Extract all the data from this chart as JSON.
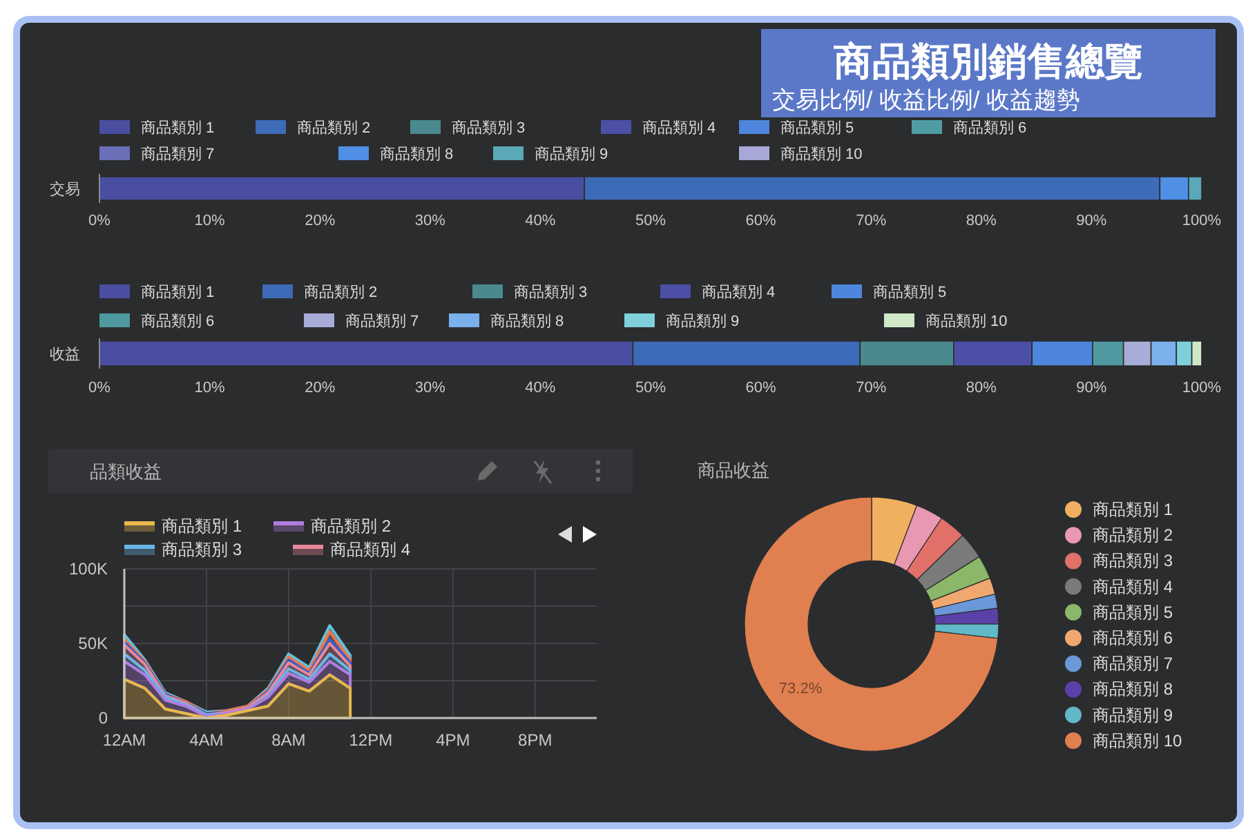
{
  "chart_data": [
    {
      "type": "other",
      "title": "商品類別銷售總覽",
      "subtitle": "交易比例/ 收益比例/ 收益趨勢"
    },
    {
      "type": "bar",
      "orientation": "horizontal",
      "stacked": true,
      "categories": [
        "交易"
      ],
      "series": [
        {
          "name": "商品類別 1",
          "color": "#4a4ea0",
          "values": [
            44.0
          ]
        },
        {
          "name": "商品類別 2",
          "color": "#3e6bb8",
          "values": [
            52.2
          ]
        },
        {
          "name": "商品類別 3",
          "color": "#4a8a8e",
          "values": [
            null
          ]
        },
        {
          "name": "商品類別 4",
          "color": "#4b4fa6",
          "values": [
            null
          ]
        },
        {
          "name": "商品類別 5",
          "color": "#4d86dc",
          "values": [
            null
          ]
        },
        {
          "name": "商品類別 6",
          "color": "#4f9ca4",
          "values": [
            null
          ]
        },
        {
          "name": "商品類別 7",
          "color": "#6a70b8",
          "values": [
            null
          ]
        },
        {
          "name": "商品類別 8",
          "color": "#4f8fe6",
          "values": [
            2.6
          ]
        },
        {
          "name": "商品類別 9",
          "color": "#5aa8b8",
          "values": [
            1.2
          ]
        },
        {
          "name": "商品類別 10",
          "color": "#a8a8d8",
          "values": [
            null
          ]
        }
      ],
      "xlim": [
        0,
        100
      ],
      "xticks": [
        {
          "value": 0,
          "label": "0%"
        },
        {
          "value": 10,
          "label": "10%"
        },
        {
          "value": 20,
          "label": "20%"
        },
        {
          "value": 30,
          "label": "30%"
        },
        {
          "value": 40,
          "label": "40%"
        },
        {
          "value": 50,
          "label": "50%"
        },
        {
          "value": 60,
          "label": "60%"
        },
        {
          "value": 70,
          "label": "70%"
        },
        {
          "value": 80,
          "label": "80%"
        },
        {
          "value": 90,
          "label": "90%"
        },
        {
          "value": 100,
          "label": "100%"
        }
      ],
      "legend": "top"
    },
    {
      "type": "bar",
      "orientation": "horizontal",
      "stacked": true,
      "categories": [
        "收益"
      ],
      "series": [
        {
          "name": "商品類別 1",
          "color": "#4a4ea0",
          "values": [
            48.4
          ]
        },
        {
          "name": "商品類別 2",
          "color": "#3e6bb8",
          "values": [
            20.6
          ]
        },
        {
          "name": "商品類別 3",
          "color": "#4a8a8e",
          "values": [
            8.5
          ]
        },
        {
          "name": "商品類別 4",
          "color": "#4b4fa6",
          "values": [
            7.1
          ]
        },
        {
          "name": "商品類別 5",
          "color": "#4d86dc",
          "values": [
            5.5
          ]
        },
        {
          "name": "商品類別 6",
          "color": "#4e9aa0",
          "values": [
            2.8
          ]
        },
        {
          "name": "商品類別 7",
          "color": "#a8acd8",
          "values": [
            2.5
          ]
        },
        {
          "name": "商品類別 8",
          "color": "#7ab0ec",
          "values": [
            2.3
          ]
        },
        {
          "name": "商品類別 9",
          "color": "#80d0dc",
          "values": [
            1.4
          ]
        },
        {
          "name": "商品類別 10",
          "color": "#d0e8c8",
          "values": [
            0.9
          ]
        }
      ],
      "xlim": [
        0,
        100
      ],
      "xticks": [
        {
          "value": 0,
          "label": "0%"
        },
        {
          "value": 10,
          "label": "10%"
        },
        {
          "value": 20,
          "label": "20%"
        },
        {
          "value": 30,
          "label": "30%"
        },
        {
          "value": 40,
          "label": "40%"
        },
        {
          "value": 50,
          "label": "50%"
        },
        {
          "value": 60,
          "label": "60%"
        },
        {
          "value": 70,
          "label": "70%"
        },
        {
          "value": 80,
          "label": "80%"
        },
        {
          "value": 90,
          "label": "90%"
        },
        {
          "value": 100,
          "label": "100%"
        }
      ],
      "legend": "top"
    },
    {
      "type": "area",
      "stacked": true,
      "title": "品類收益",
      "categories": [
        "12AM",
        null,
        null,
        null,
        "4AM",
        null,
        null,
        null,
        "8AM",
        null,
        null,
        null,
        "12PM",
        null,
        null,
        null,
        "4PM",
        null,
        null,
        null,
        "8PM",
        null,
        null,
        null
      ],
      "series": [
        {
          "name": "商品類別 1",
          "color": "#e8b84a",
          "values": [
            26000,
            20000,
            6000,
            3000,
            0,
            2000,
            5000,
            8000,
            23000,
            18000,
            29000,
            20000,
            null,
            null,
            null,
            null,
            null,
            null,
            null,
            null,
            null,
            null,
            null,
            null
          ]
        },
        {
          "name": "商品類別 2",
          "color": "#b07ce0",
          "values": [
            12000,
            9000,
            6000,
            5000,
            1000,
            1000,
            1000,
            6000,
            7000,
            6000,
            9000,
            9000,
            null,
            null,
            null,
            null,
            null,
            null,
            null,
            null,
            null,
            null,
            null,
            null
          ]
        },
        {
          "name": "商品類別 3",
          "color": "#6ab4e6",
          "values": [
            5000,
            3000,
            2000,
            1000,
            1000,
            0,
            0,
            1000,
            3000,
            2000,
            5000,
            3000,
            null,
            null,
            null,
            null,
            null,
            null,
            null,
            null,
            null,
            null,
            null,
            null
          ]
        },
        {
          "name": "商品類別 4",
          "color": "#e88898",
          "values": [
            6000,
            4000,
            1000,
            1000,
            0,
            1000,
            1000,
            2000,
            4000,
            3000,
            7000,
            3000,
            null,
            null,
            null,
            null,
            null,
            null,
            null,
            null,
            null,
            null,
            null,
            null
          ]
        },
        {
          "color": "#3c5cc8",
          "values": [
            2000,
            1000,
            1000,
            0,
            1000,
            0,
            0,
            1000,
            2000,
            1000,
            3000,
            2000,
            null,
            null,
            null,
            null,
            null,
            null,
            null,
            null,
            null,
            null,
            null,
            null
          ]
        },
        {
          "color": "#e8784a",
          "values": [
            2000,
            1000,
            0,
            1000,
            0,
            1000,
            1000,
            1000,
            2000,
            2000,
            5000,
            2000,
            null,
            null,
            null,
            null,
            null,
            null,
            null,
            null,
            null,
            null,
            null,
            null
          ]
        },
        {
          "color": "#64c0e0",
          "values": [
            3000,
            1000,
            1000,
            0,
            1000,
            0,
            0,
            1000,
            2000,
            2000,
            4000,
            3000,
            null,
            null,
            null,
            null,
            null,
            null,
            null,
            null,
            null,
            null,
            null,
            null
          ]
        }
      ],
      "ylim": [
        0,
        100000
      ],
      "yticks": [
        0,
        {
          "value": 25000,
          "label": null
        },
        {
          "value": 50000,
          "label": "50K"
        },
        {
          "value": 75000,
          "label": null
        },
        {
          "value": 100000,
          "label": "100K"
        }
      ],
      "grid": true,
      "legend": "top left"
    },
    {
      "type": "donut",
      "title": "商品收益",
      "categories": [
        "商品類別 1",
        "商品類別 2",
        "商品類別 3",
        "商品類別 4",
        "商品類別 5",
        "商品類別 6",
        "商品類別 7",
        "商品類別 8",
        "商品類別 9",
        "商品類別 10"
      ],
      "values": [
        5.8,
        3.5,
        3.4,
        3.4,
        3.0,
        2.1,
        1.8,
        2.0,
        1.8,
        73.2
      ],
      "colors": [
        "#f0b060",
        "#e898b0",
        "#e07068",
        "#7a7a7a",
        "#8ab868",
        "#f0a870",
        "#6a98d8",
        "#5a40a8",
        "#60b8c8",
        "#e08050"
      ],
      "value_labels": [
        null,
        null,
        null,
        null,
        null,
        null,
        null,
        null,
        null,
        "73.2%"
      ],
      "legend": "right"
    }
  ]
}
